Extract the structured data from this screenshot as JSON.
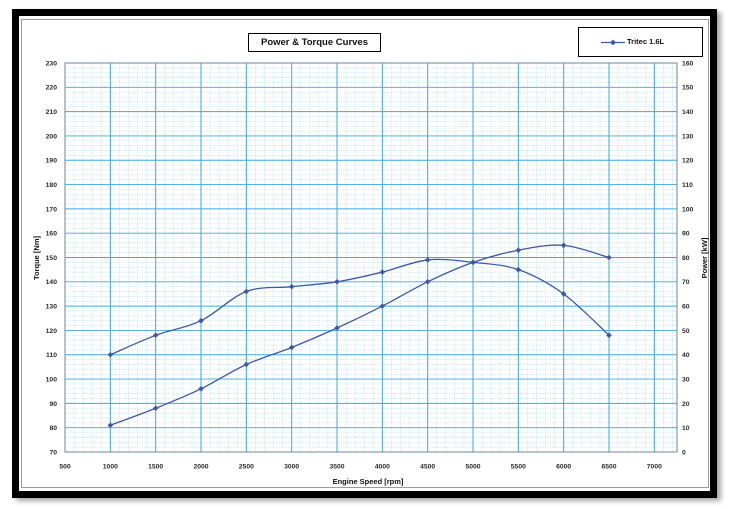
{
  "chart_data": {
    "type": "line",
    "title": "Power & Torque Curves",
    "xlabel": "Engine Speed [rpm]",
    "ylabel": "Torque [Nm]",
    "y2label": "Power [kW]",
    "x": [
      1000,
      1500,
      2000,
      2500,
      3000,
      3500,
      4000,
      4500,
      5000,
      5500,
      6000,
      6500
    ],
    "xlim": [
      500,
      7250
    ],
    "xticks": [
      500,
      1000,
      1500,
      2000,
      2500,
      3000,
      3500,
      4000,
      4500,
      5000,
      5500,
      6000,
      6500,
      7000
    ],
    "ylim": [
      70,
      230
    ],
    "yticks": [
      70,
      80,
      90,
      100,
      110,
      120,
      130,
      140,
      150,
      160,
      170,
      180,
      190,
      200,
      210,
      220,
      230
    ],
    "y2lim": [
      0,
      160
    ],
    "y2ticks": [
      0,
      10,
      20,
      30,
      40,
      50,
      60,
      70,
      80,
      90,
      100,
      110,
      120,
      130,
      140,
      150,
      160
    ],
    "series": [
      {
        "axis": "y",
        "values": [
          110,
          118,
          124,
          136,
          138,
          140,
          144,
          149,
          148,
          145,
          135,
          118
        ]
      },
      {
        "axis": "y2",
        "values": [
          11,
          18,
          26,
          36,
          43,
          51,
          60,
          70,
          78,
          83,
          85,
          80
        ]
      }
    ],
    "legend": {
      "label": "Tritec 1.6L",
      "position": "top-right"
    },
    "grid": {
      "major": true,
      "minor": true
    },
    "colors": {
      "series": "#3b58a6",
      "major_grid": "#3fa7dd",
      "minor_grid": "#b9def3",
      "axis": "#6f8599",
      "frame": "#000000"
    }
  }
}
